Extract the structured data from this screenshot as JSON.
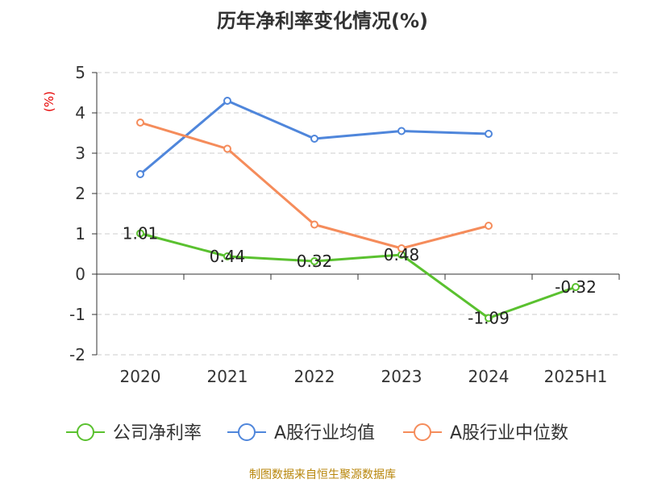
{
  "chart_data": {
    "type": "line",
    "title": "历年净利率变化情况(%)",
    "ylabel": "(%)",
    "categories": [
      "2020",
      "2021",
      "2022",
      "2023",
      "2024",
      "2025H1"
    ],
    "ylim": [
      -2,
      5
    ],
    "yticks": [
      -2,
      -1,
      0,
      1,
      2,
      3,
      4,
      5
    ],
    "grid": true,
    "legend_position": "bottom",
    "series": [
      {
        "name": "公司净利率",
        "color": "#5ac12f",
        "values": [
          1.01,
          0.44,
          0.32,
          0.48,
          -1.09,
          -0.32
        ],
        "labels": [
          "1.01",
          "0.44",
          "0.32",
          "0.48",
          "-1.09",
          "-0.32"
        ]
      },
      {
        "name": "A股行业均值",
        "color": "#4f86db",
        "values": [
          2.48,
          4.3,
          3.36,
          3.55,
          3.48,
          null
        ]
      },
      {
        "name": "A股行业中位数",
        "color": "#f58c5b",
        "values": [
          3.76,
          3.11,
          1.23,
          0.64,
          1.2,
          null
        ]
      }
    ]
  },
  "source": "制图数据来自恒生聚源数据库"
}
